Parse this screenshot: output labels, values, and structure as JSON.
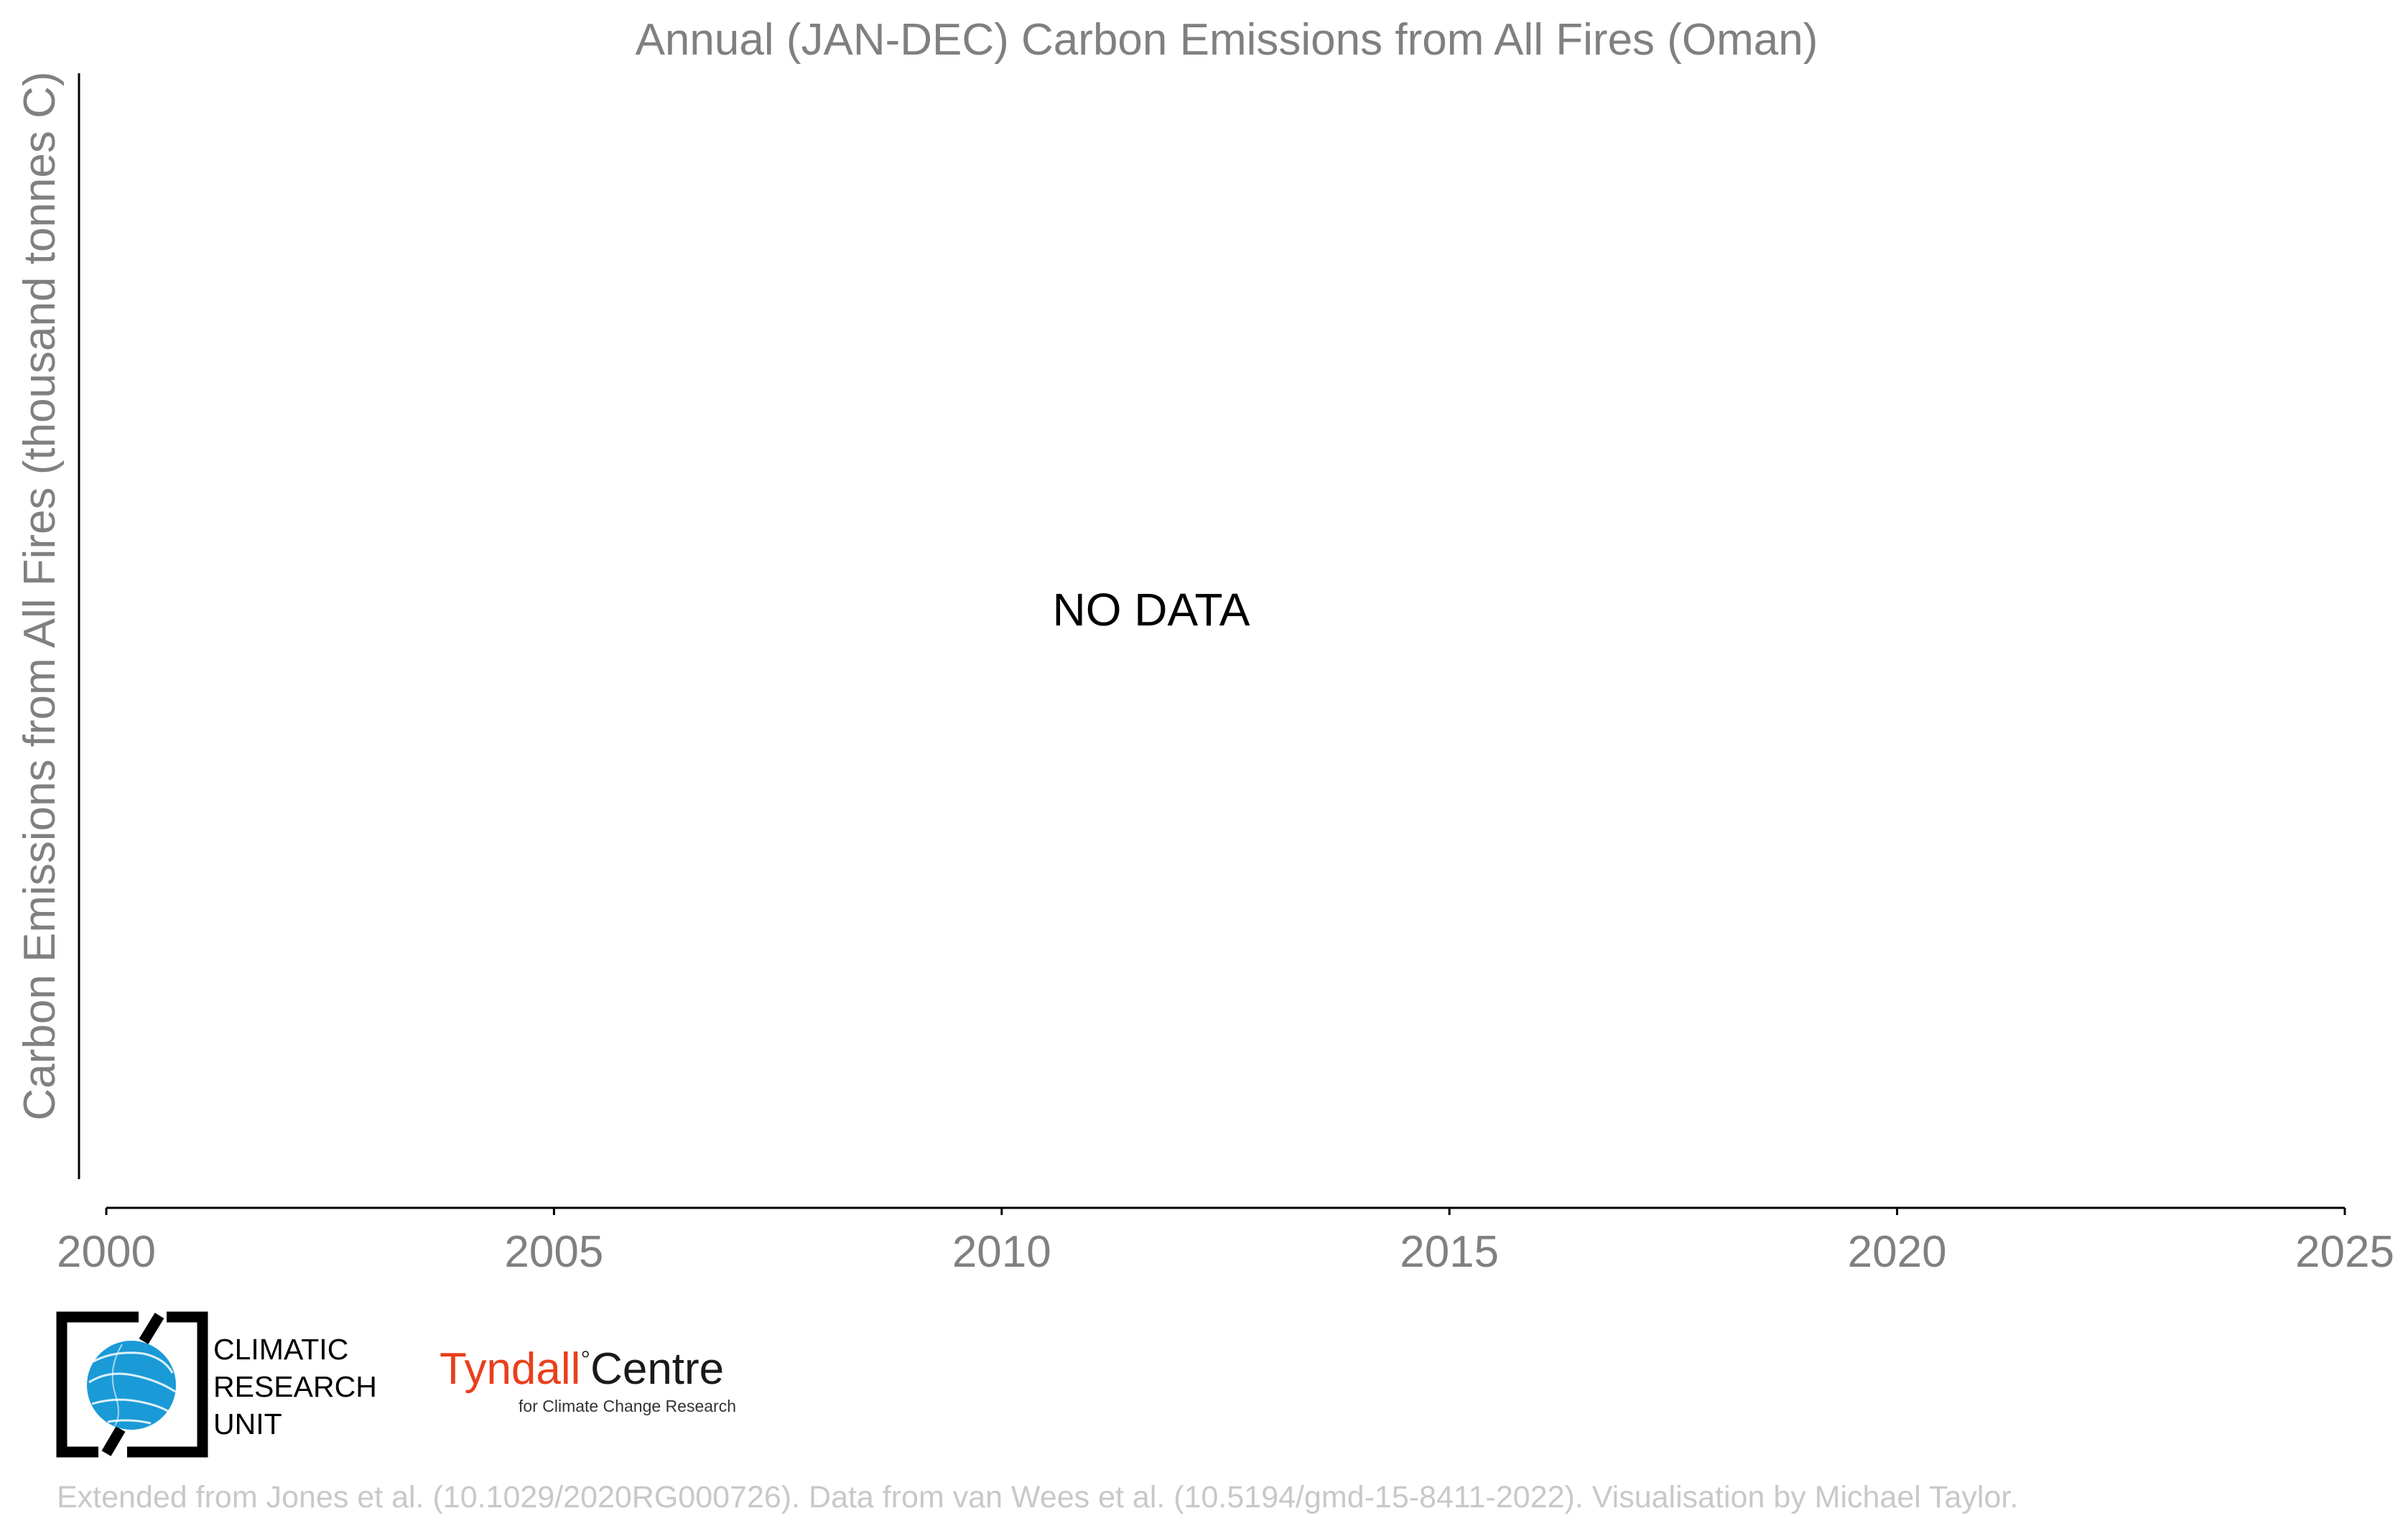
{
  "chart_data": {
    "type": "line",
    "title": "Annual (JAN-DEC) Carbon Emissions from All Fires (Oman)",
    "xlabel": "",
    "ylabel": "Carbon Emissions from All Fires (thousand tonnes C)",
    "xlim": [
      2000,
      2025
    ],
    "x_ticks": [
      "2000",
      "2005",
      "2010",
      "2015",
      "2020",
      "2025"
    ],
    "series": [],
    "annotation": "NO DATA",
    "grid": false
  },
  "logos": {
    "cru": {
      "line1": "CLIMATIC",
      "line2": "RESEARCH",
      "line3": "UNIT",
      "icon": "globe-icon",
      "color": "#1a9ad7"
    },
    "tyndall": {
      "name": "Tyndall",
      "degree": "°",
      "centre": "Centre",
      "subtitle": "for Climate Change Research",
      "color": "#e8401c"
    }
  },
  "footer": {
    "credit": "Extended from Jones et al. (10.1029/2020RG000726). Data from van Wees et al. (10.5194/gmd-15-8411-2022). Visualisation by Michael Taylor."
  }
}
